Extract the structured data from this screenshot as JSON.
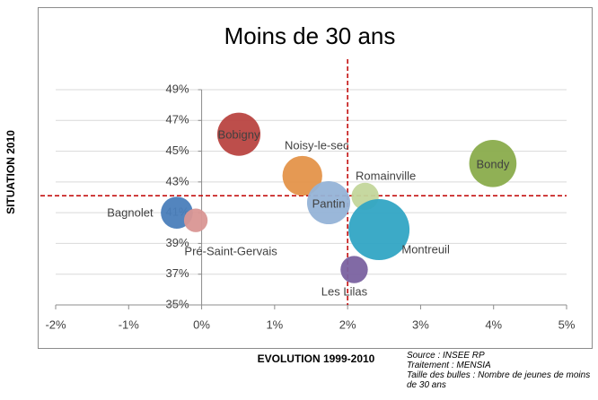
{
  "chart_data": {
    "type": "bubble",
    "title": "Moins de 30 ans",
    "x_label": "EVOLUTION 1999-2010",
    "y_label": "SITUATION 2010",
    "notes": [
      "Source : INSEE RP",
      "Traitement : MENSIA",
      "Taille des bulles : Nombre de jeunes de moins de 30 ans"
    ],
    "series": [
      {
        "name": "Bobigny",
        "color": "#b94441",
        "x": [
          0.51
        ],
        "values": [
          46.1
        ],
        "sizes": [
          20
        ]
      },
      {
        "name": "Noisy-le-sec",
        "color": "#e4934a",
        "x": [
          1.38
        ],
        "values": [
          43.4
        ],
        "sizes": [
          17
        ]
      },
      {
        "name": "Pantin",
        "color": "#95b3d7",
        "x": [
          1.74
        ],
        "values": [
          41.65
        ],
        "sizes": [
          20
        ]
      },
      {
        "name": "Romainville",
        "color": "#c3d69b",
        "x": [
          2.24
        ],
        "values": [
          42.06
        ],
        "sizes": [
          8
        ]
      },
      {
        "name": "Bondy",
        "color": "#8aac4c",
        "x": [
          3.99
        ],
        "values": [
          44.2
        ],
        "sizes": [
          24
        ]
      },
      {
        "name": "Montreuil",
        "color": "#31a5c4",
        "x": [
          2.43
        ],
        "values": [
          39.9
        ],
        "sizes": [
          40
        ]
      },
      {
        "name": "Les Lilas",
        "color": "#7a62a0",
        "x": [
          2.09
        ],
        "values": [
          37.3
        ],
        "sizes": [
          8
        ]
      },
      {
        "name": "Bagnolet",
        "color": "#4a7ebb",
        "x": [
          -0.34
        ],
        "values": [
          41.0
        ],
        "sizes": [
          11
        ]
      },
      {
        "name": "Pré-Saint-Gervais",
        "color": "#d99694",
        "x": [
          -0.08
        ],
        "values": [
          40.5
        ],
        "sizes": [
          6
        ]
      }
    ],
    "xlim": [
      -2,
      5
    ],
    "xticks": [
      {
        "value": -2,
        "label": "-2%"
      },
      {
        "value": -1,
        "label": "-1%"
      },
      {
        "value": 0,
        "label": "0%"
      },
      {
        "value": 1,
        "label": "1%"
      },
      {
        "value": 2,
        "label": "2%"
      },
      {
        "value": 3,
        "label": "3%"
      },
      {
        "value": 4,
        "label": "4%"
      },
      {
        "value": 5,
        "label": "5%"
      }
    ],
    "ylim": [
      35,
      49
    ],
    "yticks": [
      {
        "value": 35,
        "label": "35%"
      },
      {
        "value": 37,
        "label": "37%"
      },
      {
        "value": 39,
        "label": "39%"
      },
      {
        "value": 41,
        "label": "41%"
      },
      {
        "value": 43,
        "label": "43%"
      },
      {
        "value": 45,
        "label": "45%"
      },
      {
        "value": 47,
        "label": "47%"
      },
      {
        "value": 49,
        "label": "49%"
      }
    ],
    "grid": true,
    "reference_lines": {
      "x": 2,
      "y": 42.1,
      "color": "#c00000"
    }
  }
}
